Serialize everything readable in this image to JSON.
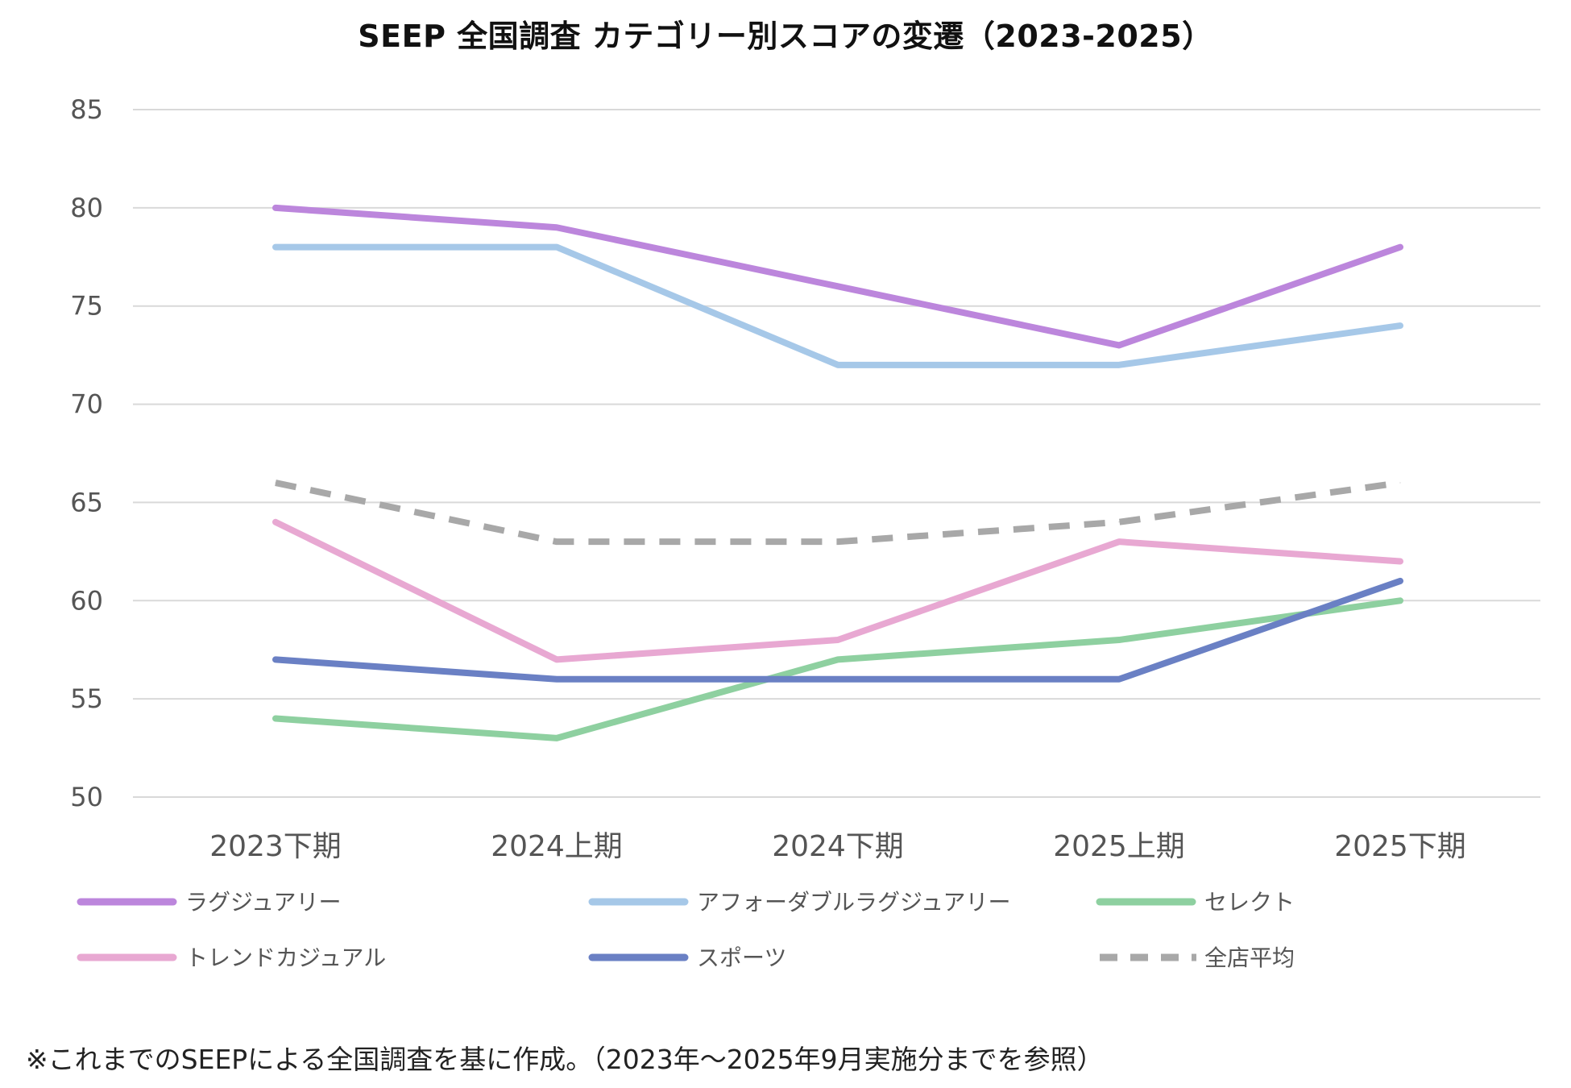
{
  "chart_data": {
    "type": "line",
    "title": "SEEP 全国調査 カテゴリー別スコアの変遷（2023-2025）",
    "categories": [
      "2023下期",
      "2024上期",
      "2024下期",
      "2025上期",
      "2025下期"
    ],
    "ylim": [
      50,
      85
    ],
    "yticks": [
      50,
      55,
      60,
      65,
      70,
      75,
      80,
      85
    ],
    "grid": true,
    "legend_position": "bottom",
    "series": [
      {
        "name": "ラグジュアリー",
        "values": [
          80,
          79,
          76,
          73,
          78
        ],
        "color": "#BC86DC",
        "dashed": false
      },
      {
        "name": "アフォーダブルラグジュアリー",
        "values": [
          78,
          78,
          72,
          72,
          74
        ],
        "color": "#A6C8E8",
        "dashed": false
      },
      {
        "name": "セレクト",
        "values": [
          54,
          53,
          57,
          58,
          60
        ],
        "color": "#8ED0A0",
        "dashed": false
      },
      {
        "name": "トレンドカジュアル",
        "values": [
          64,
          57,
          58,
          63,
          62
        ],
        "color": "#E8A8D2",
        "dashed": false
      },
      {
        "name": "スポーツ",
        "values": [
          57,
          56,
          56,
          56,
          61
        ],
        "color": "#6A80C4",
        "dashed": false
      },
      {
        "name": "全店平均",
        "values": [
          66,
          63,
          63,
          64,
          66
        ],
        "color": "#A8A8A8",
        "dashed": true
      }
    ]
  },
  "footnote": "※これまでのSEEPによる全国調査を基に作成。（2023年～2025年9月実施分までを参照）"
}
